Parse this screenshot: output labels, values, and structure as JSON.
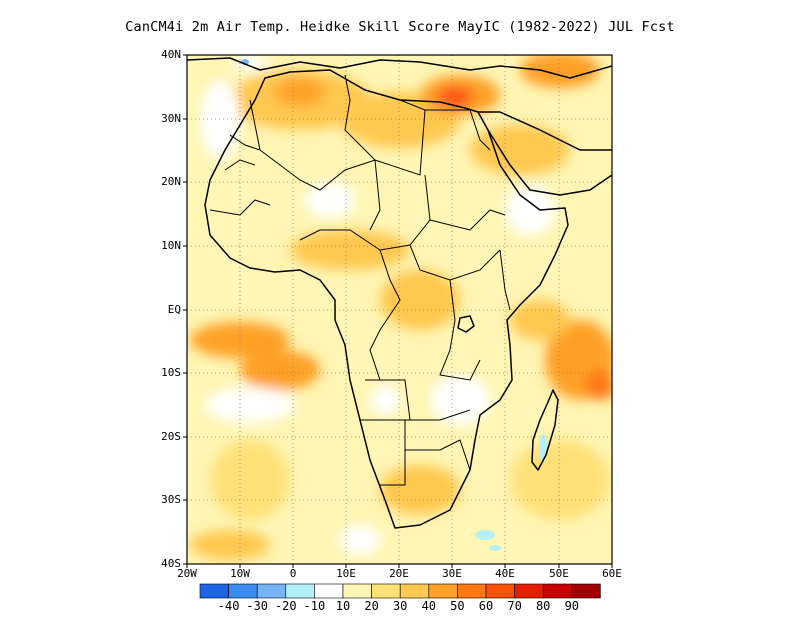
{
  "title": "CanCM4i 2m Air Temp. Heidke Skill Score MayIC (1982-2022) JUL Fcst",
  "map": {
    "lon_range": [
      -20,
      60
    ],
    "lat_range": [
      -40,
      40
    ],
    "lat_ticks": [
      "40N",
      "30N",
      "20N",
      "10N",
      "EQ",
      "10S",
      "20S",
      "30S",
      "40S"
    ],
    "lon_ticks": [
      "20W",
      "10W",
      "0",
      "10E",
      "20E",
      "30E",
      "40E",
      "50E",
      "60E"
    ],
    "grid": "dotted"
  },
  "legend": {
    "labels": [
      "-40",
      "-30",
      "-20",
      "-10",
      "10",
      "20",
      "30",
      "40",
      "50",
      "60",
      "70",
      "80",
      "90"
    ],
    "colors": [
      "#1e64e6",
      "#3c8cf0",
      "#78b4f5",
      "#b4f0fa",
      "#ffffff",
      "#fff5b4",
      "#ffe178",
      "#ffc850",
      "#ffa028",
      "#ff7814",
      "#ff500a",
      "#e61e00",
      "#c80000",
      "#a00000"
    ]
  }
}
